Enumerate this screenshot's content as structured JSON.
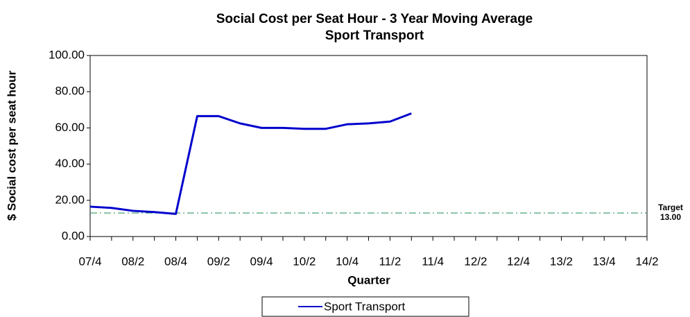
{
  "chart_data": {
    "type": "line",
    "title": "Social Cost per Seat Hour - 3 Year Moving Average",
    "subtitle": "Sport Transport",
    "y_label": "$ Social cost per seat hour",
    "x_label": "Quarter",
    "categories": [
      "07/4",
      null,
      "08/2",
      null,
      "08/4",
      null,
      "09/2",
      null,
      "09/4",
      null,
      "10/2",
      null,
      "10/4",
      null,
      "11/2",
      null,
      "11/4",
      null,
      "12/2",
      null,
      "12/4",
      null,
      "13/2",
      null,
      "13/4",
      null,
      "14/2"
    ],
    "series": [
      {
        "name": "Sport Transport",
        "color": "#0000cc",
        "values": [
          16.5,
          15.8,
          14.2,
          13.5,
          12.5,
          66.5,
          66.5,
          62.5,
          60,
          60,
          59.5,
          59.5,
          62,
          62.5,
          63.5,
          68,
          null,
          null,
          null,
          null,
          null,
          null,
          null,
          null,
          null,
          null,
          null
        ]
      }
    ],
    "ylim": [
      0,
      100
    ],
    "yticks": [
      {
        "value": 0,
        "label": "0.00"
      },
      {
        "value": 20,
        "label": "20.00"
      },
      {
        "value": 40,
        "label": "40.00"
      },
      {
        "value": 60,
        "label": "60.00"
      },
      {
        "value": 80,
        "label": "80.00"
      },
      {
        "value": 100,
        "label": "100.00"
      }
    ],
    "target_title": "Target",
    "target": {
      "value": 13,
      "label": "13.00"
    },
    "target_color": "#339966",
    "legend": "bottom"
  }
}
